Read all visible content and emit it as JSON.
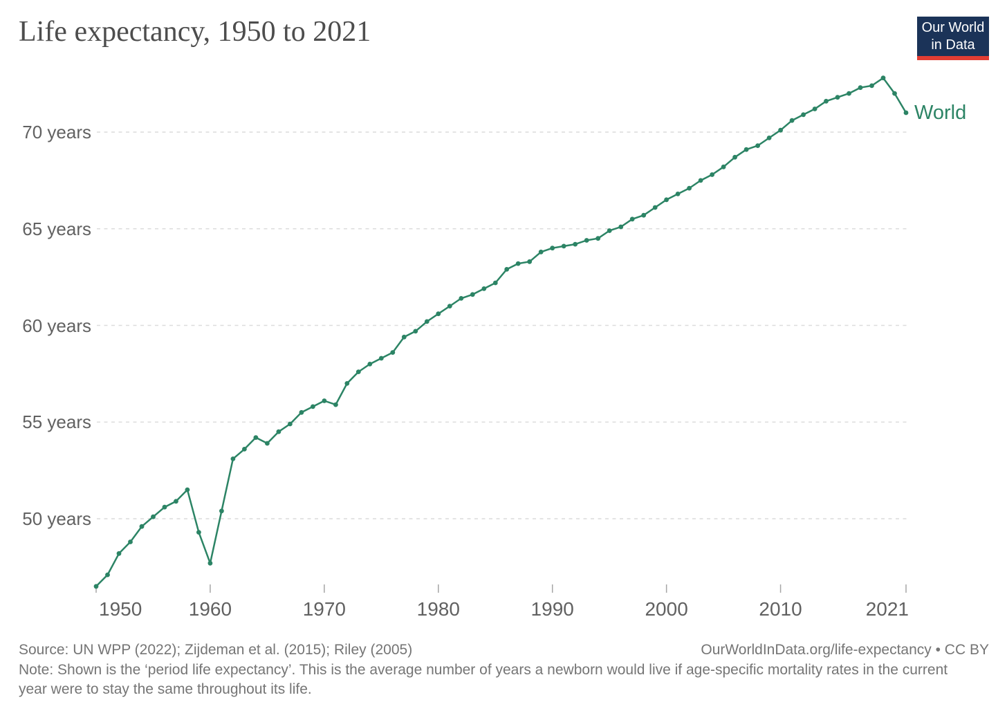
{
  "header": {
    "title": "Life expectancy, 1950 to 2021"
  },
  "logo": {
    "line1": "Our World",
    "line2": "in Data",
    "bg_color": "#1b3358",
    "bar_color": "#e23d33"
  },
  "chart_data": {
    "type": "line",
    "title": "Life expectancy, 1950 to 2021",
    "xlabel": "",
    "ylabel": "",
    "xlim": [
      1950,
      2021
    ],
    "ylim": [
      46,
      73.5
    ],
    "grid": true,
    "gridline_values": [
      50,
      55,
      60,
      65,
      70
    ],
    "legend_position": "end-of-line",
    "line_color": "#2c8465",
    "grid_color": "#dcdcdc",
    "tick_color": "#a5a5a5",
    "y_ticks": [
      {
        "value": 70,
        "label": "70 years"
      },
      {
        "value": 65,
        "label": "65 years"
      },
      {
        "value": 60,
        "label": "60 years"
      },
      {
        "value": 55,
        "label": "55 years"
      },
      {
        "value": 50,
        "label": "50 years"
      }
    ],
    "x_ticks": [
      {
        "year": 1950,
        "label": "1950"
      },
      {
        "year": 1960,
        "label": "1960"
      },
      {
        "year": 1970,
        "label": "1970"
      },
      {
        "year": 1980,
        "label": "1980"
      },
      {
        "year": 1990,
        "label": "1990"
      },
      {
        "year": 2000,
        "label": "2000"
      },
      {
        "year": 2010,
        "label": "2010"
      },
      {
        "year": 2021,
        "label": "2021"
      }
    ],
    "series": [
      {
        "name": "World",
        "x": [
          1950,
          1951,
          1952,
          1953,
          1954,
          1955,
          1956,
          1957,
          1958,
          1959,
          1960,
          1961,
          1962,
          1963,
          1964,
          1965,
          1966,
          1967,
          1968,
          1969,
          1970,
          1971,
          1972,
          1973,
          1974,
          1975,
          1976,
          1977,
          1978,
          1979,
          1980,
          1981,
          1982,
          1983,
          1984,
          1985,
          1986,
          1987,
          1988,
          1989,
          1990,
          1991,
          1992,
          1993,
          1994,
          1995,
          1996,
          1997,
          1998,
          1999,
          2000,
          2001,
          2002,
          2003,
          2004,
          2005,
          2006,
          2007,
          2008,
          2009,
          2010,
          2011,
          2012,
          2013,
          2014,
          2015,
          2016,
          2017,
          2018,
          2019,
          2020,
          2021
        ],
        "values": [
          46.5,
          47.1,
          48.2,
          48.8,
          49.6,
          50.1,
          50.6,
          50.9,
          51.5,
          49.3,
          47.7,
          50.4,
          53.1,
          53.6,
          54.2,
          53.9,
          54.5,
          54.9,
          55.5,
          55.8,
          56.1,
          55.9,
          57.0,
          57.6,
          58.0,
          58.3,
          58.6,
          59.4,
          59.7,
          60.2,
          60.6,
          61.0,
          61.4,
          61.6,
          61.9,
          62.2,
          62.9,
          63.2,
          63.3,
          63.8,
          64.0,
          64.1,
          64.2,
          64.4,
          64.5,
          64.9,
          65.1,
          65.5,
          65.7,
          66.1,
          66.5,
          66.8,
          67.1,
          67.5,
          67.8,
          68.2,
          68.7,
          69.1,
          69.3,
          69.7,
          70.1,
          70.6,
          70.9,
          71.2,
          71.6,
          71.8,
          72.0,
          72.3,
          72.4,
          72.8,
          72.0,
          71.0
        ]
      }
    ]
  },
  "footer": {
    "source": "Source: UN WPP (2022); Zijdeman et al. (2015); Riley (2005)",
    "note_lines": [
      "Note: Shown is the ‘period life expectancy’. This is the average number of years a newborn would live if age-specific mortality rates in the current",
      "year were to stay the same throughout its life."
    ],
    "link": "OurWorldInData.org/life-expectancy • CC BY"
  }
}
